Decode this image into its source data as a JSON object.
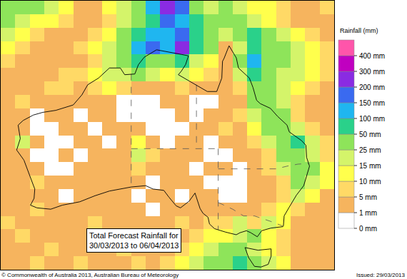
{
  "chart_data": {
    "type": "heatmap",
    "annotations": [
      "Total Forecast Rainfall for",
      "30/03/2013 to 06/04/2013"
    ],
    "credit": "© Commonwealth of Australia 2013, Australian Bureau of Meteorology",
    "issued": "Issued: 29/03/2013",
    "tick_labels": false,
    "grid": false,
    "xlim": [
      111,
      157
    ],
    "ylim": [
      -44,
      -4
    ],
    "x": [
      112,
      114,
      116,
      118,
      120,
      122,
      124,
      126,
      128,
      130,
      132,
      134,
      136,
      138,
      140,
      142,
      144,
      146,
      148,
      150,
      152,
      154,
      156
    ],
    "y": [
      -5,
      -7,
      -9,
      -11,
      -13,
      -15,
      -17,
      -19,
      -21,
      -23,
      -25,
      -27,
      -29,
      -31,
      -33,
      -35,
      -37,
      -39,
      -41,
      -43
    ],
    "z": [
      [
        35,
        35,
        35,
        20,
        12,
        3,
        3,
        12,
        20,
        35,
        120,
        250,
        170,
        35,
        20,
        35,
        20,
        12,
        12,
        7,
        3,
        3,
        7
      ],
      [
        35,
        20,
        12,
        12,
        7,
        3,
        3,
        7,
        20,
        35,
        70,
        170,
        120,
        70,
        35,
        35,
        35,
        20,
        12,
        7,
        3,
        3,
        3
      ],
      [
        20,
        12,
        7,
        3,
        3,
        3,
        7,
        12,
        35,
        70,
        120,
        120,
        170,
        70,
        35,
        20,
        35,
        70,
        35,
        20,
        12,
        7,
        3
      ],
      [
        12,
        7,
        3,
        3,
        3,
        7,
        12,
        20,
        35,
        120,
        170,
        120,
        250,
        70,
        35,
        3,
        20,
        70,
        35,
        35,
        20,
        12,
        7
      ],
      [
        7,
        3,
        3,
        3,
        3,
        3,
        7,
        20,
        35,
        70,
        35,
        35,
        70,
        20,
        12,
        3,
        35,
        120,
        35,
        35,
        20,
        12,
        7
      ],
      [
        3,
        3,
        3,
        3,
        7,
        7,
        12,
        20,
        20,
        35,
        20,
        12,
        20,
        12,
        7,
        3,
        20,
        70,
        35,
        20,
        20,
        12,
        7
      ],
      [
        3,
        3,
        3,
        7,
        7,
        3,
        7,
        12,
        7,
        3,
        3,
        3,
        7,
        3,
        3,
        3,
        7,
        35,
        35,
        20,
        12,
        7,
        3
      ],
      [
        3,
        7,
        3,
        3,
        3,
        3,
        3,
        3,
        0,
        0,
        0,
        3,
        3,
        0,
        0,
        3,
        3,
        35,
        35,
        20,
        7,
        3,
        3
      ],
      [
        3,
        3,
        0,
        3,
        3,
        0,
        3,
        3,
        0,
        0,
        0,
        0,
        3,
        0,
        3,
        3,
        7,
        20,
        35,
        35,
        7,
        3,
        3
      ],
      [
        3,
        3,
        0,
        0,
        3,
        3,
        0,
        3,
        3,
        3,
        0,
        0,
        0,
        3,
        3,
        7,
        3,
        12,
        35,
        35,
        20,
        7,
        3
      ],
      [
        3,
        20,
        3,
        0,
        0,
        3,
        3,
        0,
        3,
        12,
        3,
        0,
        3,
        3,
        0,
        3,
        3,
        7,
        20,
        35,
        70,
        20,
        7
      ],
      [
        3,
        3,
        0,
        0,
        3,
        0,
        3,
        3,
        3,
        20,
        7,
        3,
        3,
        3,
        0,
        0,
        3,
        3,
        7,
        35,
        35,
        20,
        7
      ],
      [
        3,
        3,
        3,
        0,
        0,
        3,
        3,
        3,
        3,
        7,
        3,
        3,
        3,
        0,
        3,
        3,
        0,
        3,
        7,
        20,
        35,
        35,
        12
      ],
      [
        3,
        3,
        7,
        3,
        3,
        3,
        3,
        3,
        3,
        3,
        0,
        3,
        3,
        3,
        0,
        0,
        0,
        3,
        3,
        7,
        35,
        20,
        12
      ],
      [
        3,
        3,
        3,
        3,
        0,
        3,
        3,
        3,
        3,
        0,
        3,
        3,
        0,
        3,
        3,
        0,
        0,
        3,
        3,
        7,
        20,
        12,
        3
      ],
      [
        3,
        3,
        7,
        3,
        3,
        3,
        3,
        3,
        3,
        3,
        0,
        3,
        3,
        3,
        3,
        3,
        3,
        3,
        7,
        12,
        7,
        3,
        3
      ],
      [
        7,
        3,
        3,
        3,
        3,
        3,
        7,
        3,
        3,
        3,
        3,
        3,
        7,
        3,
        7,
        7,
        20,
        7,
        20,
        12,
        3,
        3,
        3
      ],
      [
        3,
        7,
        3,
        3,
        3,
        3,
        3,
        7,
        3,
        3,
        3,
        7,
        3,
        7,
        12,
        12,
        20,
        35,
        12,
        7,
        3,
        3,
        3
      ],
      [
        3,
        3,
        3,
        7,
        3,
        3,
        3,
        3,
        7,
        3,
        3,
        3,
        7,
        12,
        20,
        35,
        35,
        20,
        12,
        7,
        3,
        3,
        3
      ],
      [
        3,
        3,
        7,
        3,
        3,
        7,
        3,
        3,
        3,
        7,
        3,
        7,
        12,
        20,
        35,
        35,
        70,
        35,
        20,
        12,
        3,
        3,
        3
      ]
    ],
    "colorbar": {
      "title": "Rainfall (mm)",
      "ticks": [
        {
          "value": 0,
          "label": "0 mm"
        },
        {
          "value": 1,
          "label": "1 mm"
        },
        {
          "value": 5,
          "label": "5 mm"
        },
        {
          "value": 10,
          "label": "10 mm"
        },
        {
          "value": 15,
          "label": "15 mm"
        },
        {
          "value": 25,
          "label": "25 mm"
        },
        {
          "value": 50,
          "label": "50 mm"
        },
        {
          "value": 100,
          "label": "100 mm"
        },
        {
          "value": 150,
          "label": "150 mm"
        },
        {
          "value": 200,
          "label": "200 mm"
        },
        {
          "value": 300,
          "label": "300 mm"
        },
        {
          "value": 400,
          "label": "400 mm"
        }
      ],
      "colors": [
        "#ffffff",
        "#f6b45e",
        "#ffd966",
        "#ffff4c",
        "#d4f46a",
        "#8ee45a",
        "#2ad18a",
        "#1fb6f0",
        "#3a6af0",
        "#8a2be2",
        "#c000c0",
        "#ff55aa"
      ]
    },
    "coastline": {
      "color": "#000000",
      "line_style": "solid",
      "x": [
        130.8,
        132.5,
        136.0,
        136.9,
        136.5,
        135.9,
        135.5,
        136.8,
        139.5,
        140.8,
        141.5,
        141.6,
        141.8,
        142.5,
        143.5,
        143.8,
        145.3,
        145.8,
        146.3,
        146.8,
        148.2,
        149.2,
        150.5,
        150.8,
        152.5,
        153.1,
        153.2,
        153.6,
        153.2,
        152.8,
        151.8,
        151.2,
        150.8,
        150.1,
        150.0,
        149.9,
        148.3,
        147.0,
        146.4,
        145.5,
        144.9,
        144.0,
        143.5,
        142.0,
        141.0,
        140.5,
        139.8,
        139.6,
        138.9,
        138.5,
        137.8,
        137.0,
        135.8,
        135.2,
        134.2,
        133.5,
        132.0,
        131.0,
        129.0,
        126.0,
        124.0,
        121.9,
        119.5,
        117.9,
        116.0,
        115.1,
        115.6,
        115.7,
        115.0,
        114.6,
        114.2,
        113.2,
        113.7,
        113.4,
        114.1,
        115.5,
        116.8,
        118.6,
        121.0,
        122.2,
        123.0,
        124.5,
        126.0,
        127.5,
        128.1,
        129.5,
        130.0,
        130.8,
        null,
        144.7,
        146.5,
        148.3,
        148.3,
        147.9,
        146.9,
        146.0,
        145.2,
        144.7
      ],
      "y": [
        -12.4,
        -11.3,
        -12.0,
        -12.2,
        -13.5,
        -14.5,
        -15.0,
        -15.8,
        -17.5,
        -17.5,
        -15.5,
        -13.0,
        -12.6,
        -10.7,
        -12.5,
        -14.0,
        -15.5,
        -16.9,
        -18.8,
        -19.3,
        -20.0,
        -21.2,
        -22.5,
        -23.5,
        -24.8,
        -25.5,
        -27.3,
        -28.6,
        -30.0,
        -31.5,
        -32.9,
        -33.9,
        -34.7,
        -36.0,
        -37.5,
        -37.6,
        -37.8,
        -38.2,
        -39.1,
        -38.5,
        -38.2,
        -38.5,
        -38.8,
        -38.4,
        -38.1,
        -37.9,
        -37.2,
        -36.2,
        -35.6,
        -34.9,
        -32.6,
        -33.8,
        -34.8,
        -34.5,
        -33.2,
        -32.2,
        -32.0,
        -31.5,
        -31.7,
        -32.3,
        -33.0,
        -33.9,
        -34.4,
        -35.0,
        -34.8,
        -34.4,
        -33.4,
        -32.0,
        -30.0,
        -28.8,
        -27.7,
        -26.2,
        -24.5,
        -22.5,
        -21.8,
        -21.0,
        -20.6,
        -20.3,
        -19.5,
        -18.0,
        -16.5,
        -15.5,
        -14.0,
        -14.0,
        -15.0,
        -14.9,
        -13.5,
        -12.4,
        null,
        -40.7,
        -41.1,
        -40.9,
        -42.0,
        -43.2,
        -43.6,
        -43.5,
        -42.2,
        -40.7
      ]
    },
    "borders": {
      "color": "#555555",
      "line_style": "dashed",
      "x": [
        129,
        129,
        null,
        129,
        141,
        null,
        138,
        138,
        null,
        141,
        141,
        null,
        141,
        149,
        150.5,
        152,
        153.5,
        null,
        141,
        143,
        144.5,
        146,
        148.2,
        149.9
      ],
      "y": [
        -14.9,
        -31.7,
        null,
        -26,
        -26,
        null,
        -16.5,
        -26,
        null,
        -26,
        -38.05,
        null,
        -29,
        -29,
        -28.6,
        -28.3,
        -28.2,
        null,
        -34,
        -35,
        -36,
        -36,
        -36.8,
        -37.5
      ]
    }
  }
}
